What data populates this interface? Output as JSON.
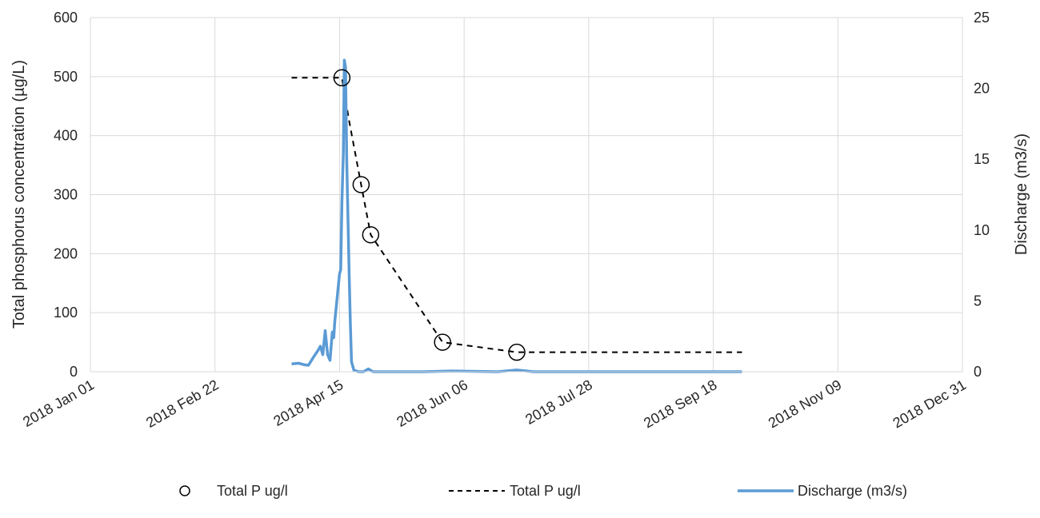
{
  "chart_data": {
    "type": "line",
    "x_axis": {
      "scale": "date",
      "range": [
        "2018-01-01",
        "2018-12-31"
      ],
      "tick_labels": [
        "2018 Jan 01",
        "2018 Feb 22",
        "2018 Apr 15",
        "2018 Jun 06",
        "2018 Jul 28",
        "2018 Sep 18",
        "2018 Nov 09",
        "2018 Dec 31"
      ],
      "grid": true
    },
    "y_left": {
      "label": "Total phosphorus concentration (µg/L)",
      "range": [
        0,
        600
      ],
      "ticks": [
        "0",
        "100",
        "200",
        "300",
        "400",
        "500",
        "600"
      ],
      "grid": true
    },
    "y_right": {
      "label": "Discharge (m3/s)",
      "range": [
        0,
        25
      ],
      "ticks": [
        "0",
        "5",
        "10",
        "15",
        "20",
        "25"
      ]
    },
    "legend_position": "bottom",
    "series": [
      {
        "name": "Total P ug/l",
        "style": "markers",
        "marker": "open-circle",
        "axis": "left",
        "color": "#000000",
        "points": [
          {
            "x": "2018-04-16",
            "y": 498
          },
          {
            "x": "2018-04-24",
            "y": 317
          },
          {
            "x": "2018-04-28",
            "y": 232
          },
          {
            "x": "2018-05-28",
            "y": 50
          },
          {
            "x": "2018-06-28",
            "y": 33
          }
        ]
      },
      {
        "name": "Total P ug/l",
        "style": "dashed-line",
        "axis": "left",
        "color": "#000000",
        "points": [
          {
            "x": "2018-03-26",
            "y": 498
          },
          {
            "x": "2018-04-16",
            "y": 498
          },
          {
            "x": "2018-04-19",
            "y": 425
          },
          {
            "x": "2018-04-24",
            "y": 317
          },
          {
            "x": "2018-04-28",
            "y": 232
          },
          {
            "x": "2018-05-28",
            "y": 50
          },
          {
            "x": "2018-06-28",
            "y": 33
          },
          {
            "x": "2018-09-30",
            "y": 33
          }
        ]
      },
      {
        "name": "Discharge (m3/s)",
        "style": "line",
        "axis": "right",
        "color": "#5b9bd5",
        "points": [
          {
            "x": "2018-03-26",
            "y": 0.55
          },
          {
            "x": "2018-03-29",
            "y": 0.6
          },
          {
            "x": "2018-03-31",
            "y": 0.5
          },
          {
            "x": "2018-04-02",
            "y": 0.45
          },
          {
            "x": "2018-04-04",
            "y": 1.0
          },
          {
            "x": "2018-04-06",
            "y": 1.5
          },
          {
            "x": "2018-04-07",
            "y": 1.8
          },
          {
            "x": "2018-04-08",
            "y": 1.2
          },
          {
            "x": "2018-04-09",
            "y": 2.9
          },
          {
            "x": "2018-04-10",
            "y": 1.2
          },
          {
            "x": "2018-04-11",
            "y": 0.8
          },
          {
            "x": "2018-04-12",
            "y": 2.8
          },
          {
            "x": "2018-04-12.6",
            "y": 2.4
          },
          {
            "x": "2018-04-13",
            "y": 3.5
          },
          {
            "x": "2018-04-14",
            "y": 5.2
          },
          {
            "x": "2018-04-15",
            "y": 6.9
          },
          {
            "x": "2018-04-15.5",
            "y": 7.2
          },
          {
            "x": "2018-04-16",
            "y": 12.0
          },
          {
            "x": "2018-04-16.6",
            "y": 15.5
          },
          {
            "x": "2018-04-17",
            "y": 22.0
          },
          {
            "x": "2018-04-17.5",
            "y": 21.5
          },
          {
            "x": "2018-04-18",
            "y": 15.0
          },
          {
            "x": "2018-04-19",
            "y": 7.0
          },
          {
            "x": "2018-04-19.5",
            "y": 3.5
          },
          {
            "x": "2018-04-20",
            "y": 0.7
          },
          {
            "x": "2018-04-21",
            "y": 0.1
          },
          {
            "x": "2018-04-23",
            "y": 0.0
          },
          {
            "x": "2018-04-25",
            "y": 0.0
          },
          {
            "x": "2018-04-27",
            "y": 0.2
          },
          {
            "x": "2018-04-29",
            "y": 0.0
          },
          {
            "x": "2018-05-20",
            "y": 0.0
          },
          {
            "x": "2018-06-01",
            "y": 0.05
          },
          {
            "x": "2018-06-20",
            "y": 0.0
          },
          {
            "x": "2018-06-28",
            "y": 0.12
          },
          {
            "x": "2018-07-05",
            "y": 0.0
          },
          {
            "x": "2018-09-30",
            "y": 0.0
          }
        ]
      }
    ]
  }
}
